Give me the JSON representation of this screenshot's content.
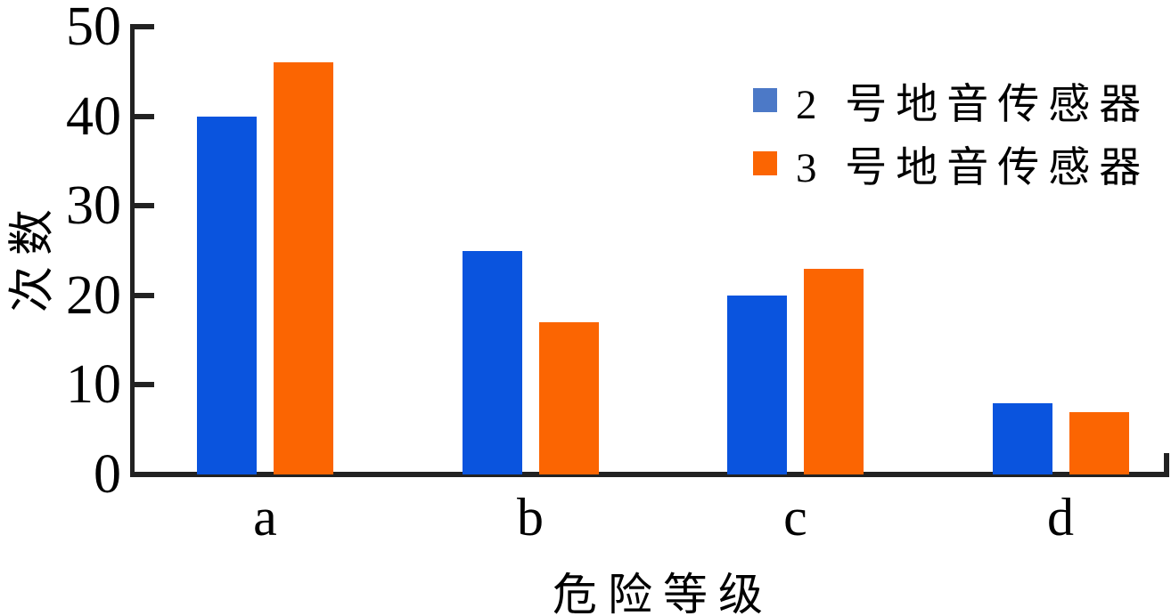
{
  "chart_data": {
    "type": "bar",
    "title": "",
    "categories": [
      "a",
      "b",
      "c",
      "d"
    ],
    "series": [
      {
        "name": "2 号地音传感器",
        "bar_color": "#0A54DE",
        "legend_color": "#4C79C7",
        "values": [
          40,
          25,
          20,
          8
        ]
      },
      {
        "name": "3 号地音传感器",
        "bar_color": "#FB6502",
        "legend_color": "#FB6502",
        "values": [
          46,
          17,
          23,
          7
        ]
      }
    ],
    "xlabel": "危险等级",
    "ylabel": "次数",
    "ylim": [
      0,
      50
    ],
    "yticks": [
      0,
      10,
      20,
      30,
      40,
      50
    ],
    "grid": false,
    "legend_position": "top-right"
  },
  "colors": {
    "background": "#ffffff",
    "axis": "#222222",
    "text": "#000000"
  }
}
